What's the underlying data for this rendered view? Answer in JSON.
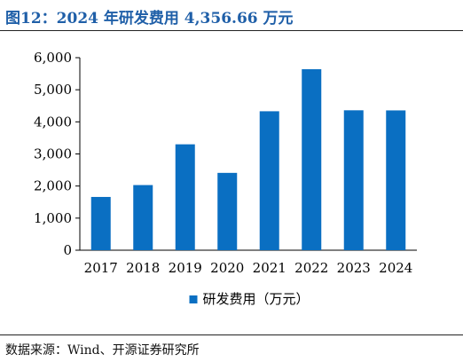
{
  "figure": {
    "title": "图12：2024 年研发费用 4,356.66 万元",
    "source": "数据来源：Wind、开源证券研究所"
  },
  "colors": {
    "bar": "#0a6fc2",
    "title": "#1f5fa8",
    "axis": "#000000",
    "text": "#000000"
  },
  "chart_data": {
    "type": "bar",
    "categories": [
      "2017",
      "2018",
      "2019",
      "2020",
      "2021",
      "2022",
      "2023",
      "2024"
    ],
    "series": [
      {
        "name": "研发费用（万元）",
        "values": [
          1660,
          2030,
          3300,
          2410,
          4330,
          5640,
          4360,
          4356.66
        ]
      }
    ],
    "ylim": [
      0,
      6000
    ],
    "yticks": [
      0,
      1000,
      2000,
      3000,
      4000,
      5000,
      6000
    ],
    "ytick_labels": [
      "0",
      "1,000",
      "2,000",
      "3,000",
      "4,000",
      "5,000",
      "6,000"
    ],
    "legend_position": "bottom-center",
    "grid": false
  }
}
